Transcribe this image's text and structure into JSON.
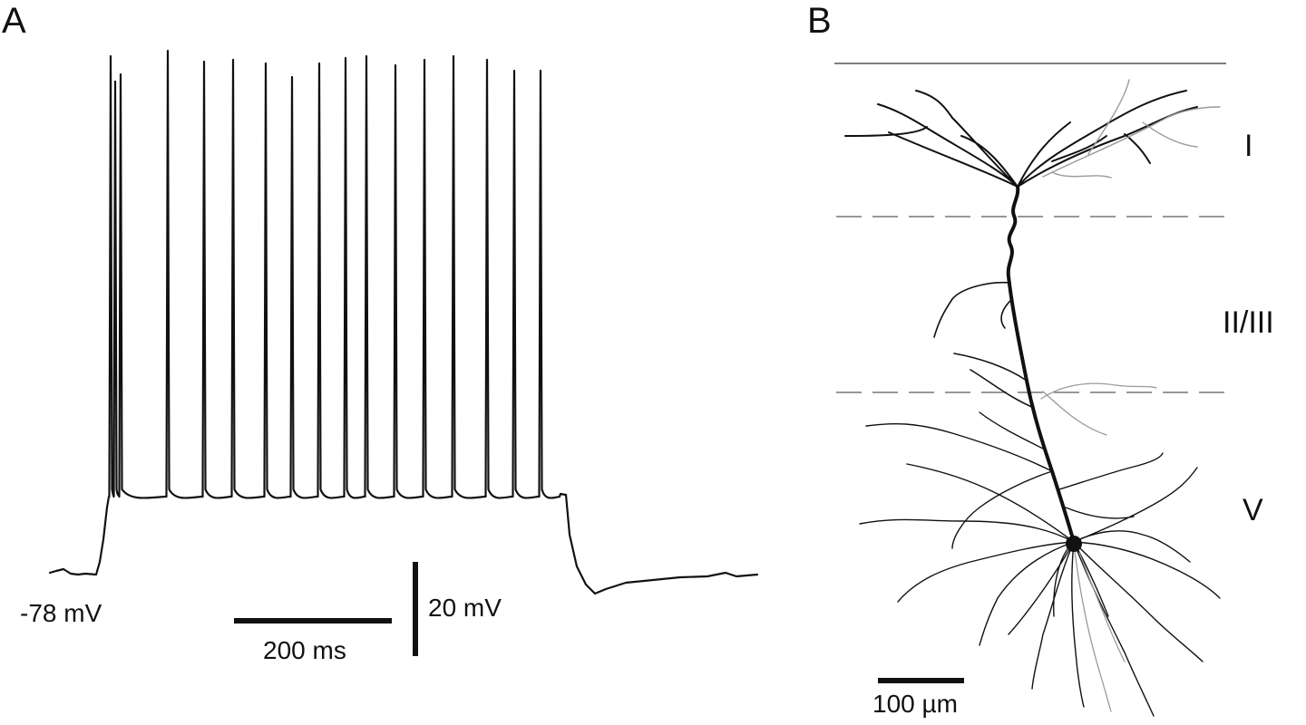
{
  "panel_a": {
    "letter": "A",
    "resting_potential_label": "-78 mV",
    "voltage_scale_label": "20 mV",
    "time_scale_label": "200 ms",
    "trace": {
      "resting_mv": -78,
      "spike_count": 17
    }
  },
  "panel_b": {
    "letter": "B",
    "layers": [
      "I",
      "II/III",
      "V"
    ],
    "scale_bar_label": "100 µm"
  },
  "colors": {
    "ink": "#111111",
    "boundary": "#555555",
    "faint_dendrite": "#9a9a9a"
  }
}
